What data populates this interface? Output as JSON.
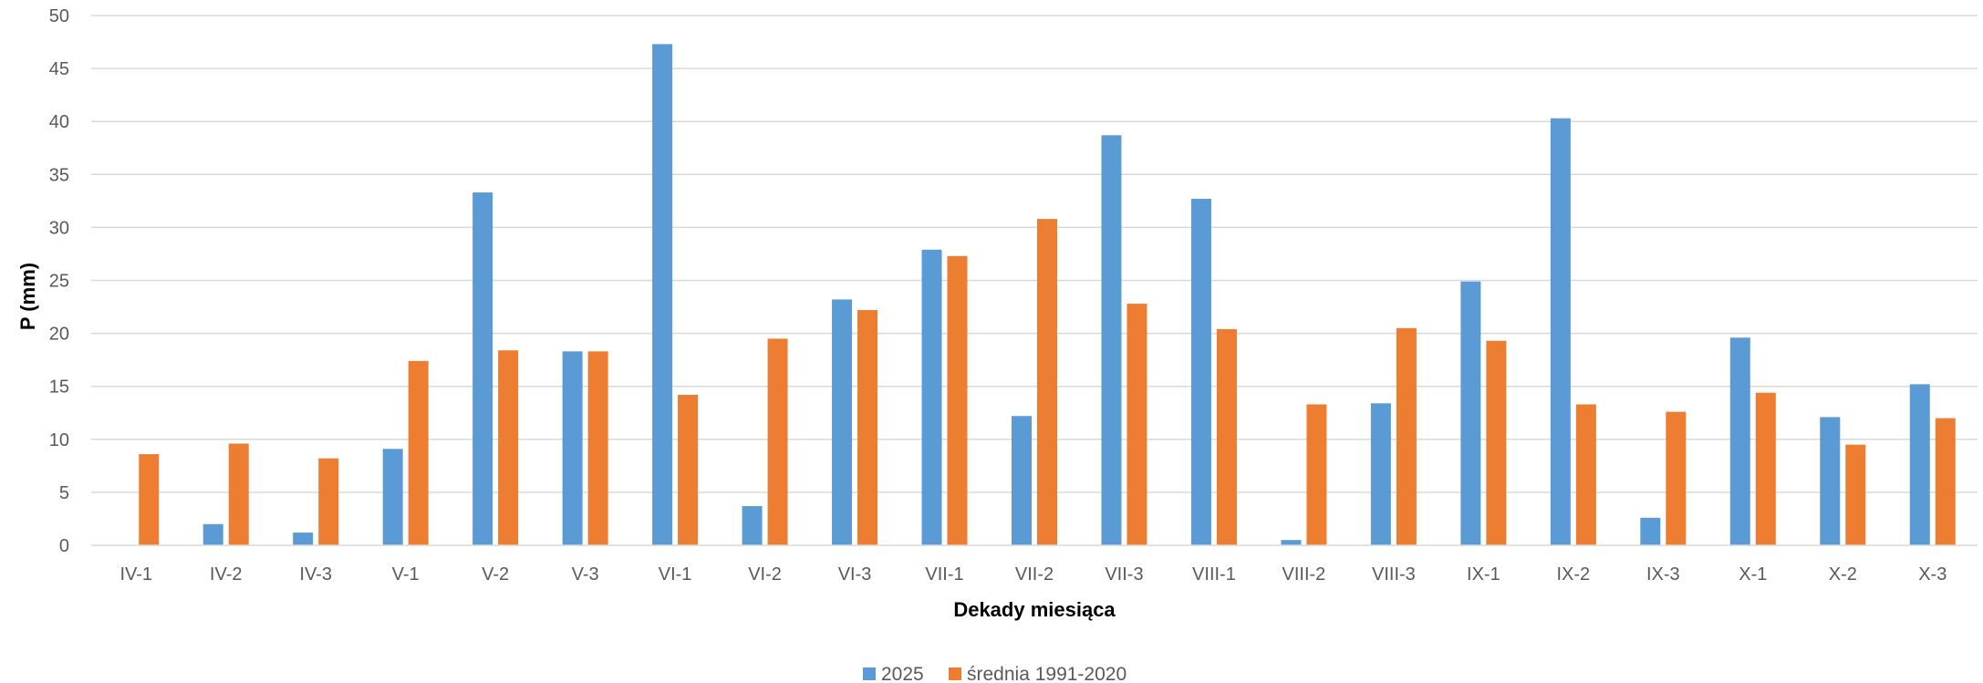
{
  "chart_data": {
    "type": "bar",
    "xlabel": "Dekady miesiąca",
    "ylabel": "P (mm)",
    "ylim": [
      0,
      50
    ],
    "yticks": [
      0,
      5,
      10,
      15,
      20,
      25,
      30,
      35,
      40,
      45,
      50
    ],
    "grid": true,
    "legend_position": "bottom",
    "categories": [
      "IV-1",
      "IV-2",
      "IV-3",
      "V-1",
      "V-2",
      "V-3",
      "VI-1",
      "VI-2",
      "VI-3",
      "VII-1",
      "VII-2",
      "VII-3",
      "VIII-1",
      "VIII-2",
      "VIII-3",
      "IX-1",
      "IX-2",
      "IX-3",
      "X-1",
      "X-2",
      "X-3"
    ],
    "series": [
      {
        "name": "2025",
        "color": "#5B9BD5",
        "values": [
          0,
          2.0,
          1.2,
          9.1,
          33.3,
          18.3,
          47.3,
          3.7,
          23.2,
          27.9,
          12.2,
          38.7,
          32.7,
          0.5,
          13.4,
          24.9,
          40.3,
          2.6,
          19.6,
          12.1,
          15.2
        ]
      },
      {
        "name": "średnia 1991-2020",
        "color": "#ED7D31",
        "values": [
          8.6,
          9.6,
          8.2,
          17.4,
          18.4,
          18.3,
          14.2,
          19.5,
          22.2,
          27.3,
          30.8,
          22.8,
          20.4,
          13.3,
          20.5,
          19.3,
          13.3,
          12.6,
          14.4,
          9.5,
          12.0
        ]
      }
    ]
  }
}
